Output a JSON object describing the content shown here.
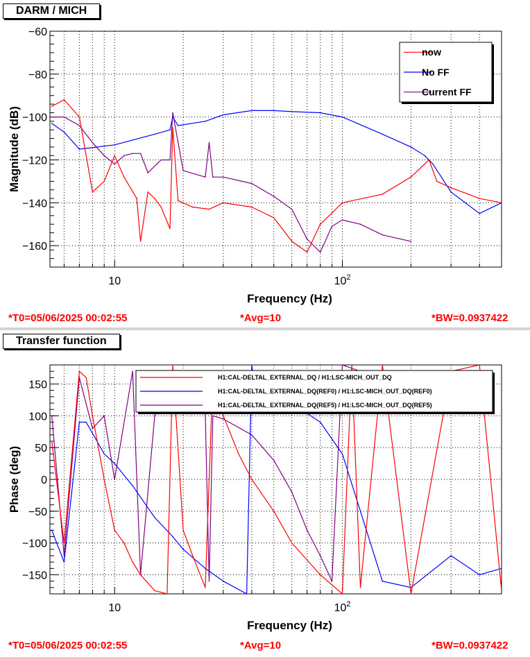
{
  "panels": [
    {
      "title": "DARM / MICH",
      "status": {
        "t0": "*T0=05/06/2025 00:02:55",
        "avg": "*Avg=10",
        "bw": "*BW=0.0937422"
      }
    },
    {
      "title": "Transfer function",
      "status": {
        "t0": "*T0=05/06/2025 00:02:55",
        "avg": "*Avg=10",
        "bw": "*BW=0.0937422"
      }
    }
  ],
  "chart_data": [
    {
      "type": "line",
      "xlabel": "Frequency (Hz)",
      "ylabel": "Magnitude (dB)",
      "xscale": "log",
      "xlim": [
        5.2,
        500
      ],
      "ylim": [
        -170,
        -60
      ],
      "xtick_labels": [
        "10",
        "10^2"
      ],
      "yticks": [
        -60,
        -80,
        -100,
        -120,
        -140,
        -160
      ],
      "grid": true,
      "legend_placement": "top-right",
      "series": [
        {
          "name": "now",
          "color": "#ff0000",
          "x": [
            5.3,
            6,
            7,
            8,
            9,
            10,
            11,
            12.5,
            13,
            14,
            15,
            16,
            17.5,
            18,
            19,
            22,
            26,
            30,
            40,
            50,
            60,
            70,
            80,
            100,
            150,
            200,
            240,
            260,
            300,
            400,
            500
          ],
          "y": [
            -95,
            -92,
            -100,
            -135,
            -130,
            -118,
            -128,
            -138,
            -158,
            -135,
            -138,
            -142,
            -152,
            -105,
            -139,
            -142,
            -143,
            -140,
            -142,
            -147,
            -158,
            -163,
            -150,
            -140,
            -136,
            -128,
            -120,
            -130,
            -133,
            -138,
            -140
          ]
        },
        {
          "name": "No FF",
          "color": "#0000ff",
          "x": [
            5.3,
            6,
            7,
            10,
            15,
            17.5,
            18,
            19,
            25,
            30,
            40,
            50,
            60,
            80,
            100,
            150,
            200,
            230,
            250,
            300,
            400,
            500
          ],
          "y": [
            -103,
            -107,
            -115,
            -113,
            -108,
            -106,
            -100,
            -104,
            -102,
            -99,
            -97,
            -97,
            -97.5,
            -98,
            -100,
            -108,
            -114,
            -118,
            -122,
            -135,
            -145,
            -140
          ]
        },
        {
          "name": "Current FF",
          "color": "#800080",
          "x": [
            5.3,
            6,
            7,
            8,
            9,
            10,
            11,
            12,
            13,
            14,
            16,
            17.5,
            18,
            20,
            25,
            26,
            27,
            30,
            40,
            50,
            60,
            70,
            80,
            90,
            100,
            120,
            150,
            200
          ],
          "y": [
            -100,
            -100,
            -104,
            -112,
            -118,
            -122,
            -118,
            -117,
            -117,
            -126,
            -120,
            -120,
            -98,
            -125,
            -128,
            -112,
            -128,
            -128,
            -131,
            -137,
            -143,
            -157,
            -163,
            -151,
            -148,
            -150,
            -155,
            -158
          ]
        }
      ]
    },
    {
      "type": "line",
      "xlabel": "Frequency (Hz)",
      "ylabel": "Phase (deg)",
      "xscale": "log",
      "xlim": [
        5.2,
        500
      ],
      "ylim": [
        -180,
        180
      ],
      "xtick_labels": [
        "10",
        "10^2"
      ],
      "yticks": [
        150,
        100,
        50,
        0,
        -50,
        -100,
        -150
      ],
      "grid": true,
      "legend_placement": "top-right",
      "series": [
        {
          "name": "H1:CAL-DELTAL_EXTERNAL_DQ / H1:LSC-MICH_OUT_DQ",
          "color": "#ff0000",
          "x": [
            5.3,
            6,
            7,
            7.5,
            8,
            9,
            10,
            11,
            12,
            13,
            15,
            17,
            18,
            20,
            22,
            25,
            27,
            30,
            35,
            40,
            50,
            60,
            80,
            100,
            110,
            120,
            150,
            200,
            300,
            400,
            500
          ],
          "y": [
            60,
            -100,
            170,
            160,
            100,
            0,
            -80,
            -100,
            -130,
            -150,
            -175,
            -180,
            180,
            -80,
            -120,
            -170,
            160,
            100,
            40,
            0,
            -50,
            -100,
            -150,
            -180,
            180,
            -170,
            180,
            -180,
            170,
            180,
            -175
          ]
        },
        {
          "name": "H1:CAL-DELTAL_EXTERNAL_DQ(REF0) / H1:LSC-MICH_OUT_DQ(REF0)",
          "color": "#0000ff",
          "x": [
            5.3,
            6,
            7,
            7.5,
            9,
            10,
            12,
            15,
            18,
            20,
            25,
            30,
            38,
            40,
            41,
            50,
            60,
            80,
            100,
            150,
            200,
            300,
            400,
            500
          ],
          "y": [
            -80,
            -130,
            90,
            90,
            40,
            25,
            -10,
            -60,
            -90,
            -110,
            -140,
            -160,
            -180,
            180,
            150,
            130,
            120,
            90,
            40,
            -160,
            -170,
            -120,
            -150,
            -140
          ]
        },
        {
          "name": "H1:CAL-DELTAL_EXTERNAL_DQ(REF5) / H1:LSC-MICH_OUT_DQ(REF5)",
          "color": "#800080",
          "x": [
            5.3,
            6,
            7,
            8,
            9,
            10,
            12,
            13,
            15,
            17,
            18,
            20,
            25,
            26,
            27,
            30,
            40,
            50,
            60,
            70,
            80,
            90,
            100,
            120
          ],
          "y": [
            100,
            -120,
            160,
            80,
            100,
            0,
            170,
            -150,
            100,
            140,
            160,
            120,
            105,
            -160,
            100,
            95,
            70,
            30,
            -20,
            -80,
            -120,
            -160,
            180,
            170
          ]
        }
      ]
    }
  ]
}
